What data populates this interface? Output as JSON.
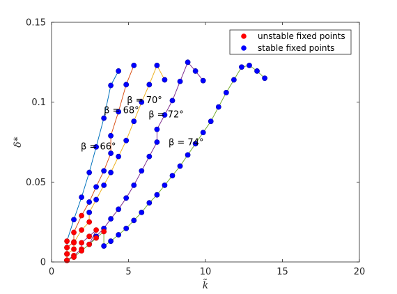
{
  "chart_data": {
    "type": "scatter",
    "title": "",
    "xlabel": "k̃",
    "ylabel": "δ*",
    "xlim": [
      0,
      20
    ],
    "ylim": [
      0,
      0.15
    ],
    "xticks": [
      0,
      5,
      10,
      15,
      20
    ],
    "xtick_labels": [
      "0",
      "5",
      "10",
      "15",
      "20"
    ],
    "yticks": [
      0,
      0.05,
      0.1,
      0.15
    ],
    "ytick_labels": [
      "0",
      "0.05",
      "0.1",
      "0.15"
    ],
    "grid": false,
    "legend_position": "top-right",
    "legend": [
      {
        "label": "unstable fixed points",
        "color": "#ff0000"
      },
      {
        "label": "stable fixed points",
        "color": "#0000ff"
      }
    ],
    "series": [
      {
        "beta_deg": 66,
        "line_color": "#0072bd",
        "annotation": {
          "text": "β = 66°",
          "x": 1.9,
          "y": 0.0705
        },
        "unstable": [
          [
            1.0,
            0.001
          ],
          [
            1.0,
            0.005
          ],
          [
            1.0,
            0.009
          ],
          [
            1.0,
            0.013
          ]
        ],
        "stable": [
          [
            1.45,
            0.0265
          ],
          [
            1.95,
            0.0405
          ],
          [
            2.45,
            0.056
          ],
          [
            2.9,
            0.072
          ],
          [
            3.4,
            0.09
          ],
          [
            3.85,
            0.1105
          ],
          [
            4.35,
            0.1195
          ]
        ]
      },
      {
        "beta_deg": 68,
        "line_color": "#d95319",
        "annotation": {
          "text": "β = 68°",
          "x": 3.4,
          "y": 0.093
        },
        "unstable": [
          [
            1.0,
            0.001
          ],
          [
            1.0,
            0.005
          ],
          [
            1.0,
            0.009
          ],
          [
            1.45,
            0.0125
          ],
          [
            1.45,
            0.0185
          ],
          [
            1.95,
            0.029
          ]
        ],
        "stable": [
          [
            2.45,
            0.0375
          ],
          [
            2.9,
            0.047
          ],
          [
            3.4,
            0.057
          ],
          [
            3.85,
            0.068
          ],
          [
            3.85,
            0.079
          ],
          [
            4.35,
            0.094
          ],
          [
            4.85,
            0.111
          ],
          [
            5.35,
            0.123
          ]
        ]
      },
      {
        "beta_deg": 70,
        "line_color": "#edb120",
        "annotation": {
          "text": "β = 70°",
          "x": 4.9,
          "y": 0.0995
        },
        "unstable": [
          [
            1.0,
            0.001
          ],
          [
            1.0,
            0.005
          ],
          [
            1.45,
            0.008
          ],
          [
            1.45,
            0.012
          ],
          [
            1.95,
            0.02
          ],
          [
            2.45,
            0.025
          ]
        ],
        "stable": [
          [
            2.45,
            0.031
          ],
          [
            2.9,
            0.039
          ],
          [
            3.4,
            0.048
          ],
          [
            3.85,
            0.056
          ],
          [
            4.35,
            0.066
          ],
          [
            4.85,
            0.076
          ],
          [
            5.35,
            0.088
          ],
          [
            5.85,
            0.1
          ],
          [
            6.35,
            0.111
          ],
          [
            6.85,
            0.123
          ],
          [
            7.35,
            0.114
          ]
        ]
      },
      {
        "beta_deg": 72,
        "line_color": "#7e2f8e",
        "annotation": {
          "text": "β = 72°",
          "x": 6.3,
          "y": 0.0905
        },
        "unstable": [
          [
            1.0,
            0.001
          ],
          [
            1.45,
            0.004
          ],
          [
            1.95,
            0.008
          ],
          [
            1.95,
            0.012
          ],
          [
            2.45,
            0.016
          ],
          [
            2.9,
            0.02
          ]
        ],
        "stable": [
          [
            2.45,
            0.011
          ],
          [
            2.9,
            0.016
          ],
          [
            3.4,
            0.021
          ],
          [
            3.85,
            0.027
          ],
          [
            4.35,
            0.033
          ],
          [
            4.85,
            0.04
          ],
          [
            5.35,
            0.048
          ],
          [
            5.85,
            0.057
          ],
          [
            6.35,
            0.066
          ],
          [
            6.85,
            0.075
          ],
          [
            6.85,
            0.083
          ],
          [
            7.35,
            0.092
          ],
          [
            7.85,
            0.101
          ],
          [
            8.35,
            0.113
          ],
          [
            8.85,
            0.125
          ],
          [
            9.35,
            0.1195
          ],
          [
            9.85,
            0.1135
          ]
        ]
      },
      {
        "beta_deg": 74,
        "line_color": "#77ac30",
        "annotation": {
          "text": "β = 74°",
          "x": 7.6,
          "y": 0.073
        },
        "unstable": [
          [
            1.0,
            0.001
          ],
          [
            1.45,
            0.003
          ],
          [
            1.95,
            0.007
          ],
          [
            2.45,
            0.011
          ],
          [
            2.9,
            0.015
          ],
          [
            3.4,
            0.019
          ]
        ],
        "stable": [
          [
            3.4,
            0.01
          ],
          [
            3.85,
            0.013
          ],
          [
            4.35,
            0.017
          ],
          [
            4.85,
            0.021
          ],
          [
            5.35,
            0.026
          ],
          [
            5.85,
            0.031
          ],
          [
            6.35,
            0.037
          ],
          [
            6.85,
            0.042
          ],
          [
            7.35,
            0.048
          ],
          [
            7.85,
            0.054
          ],
          [
            8.35,
            0.06
          ],
          [
            8.85,
            0.067
          ],
          [
            9.35,
            0.074
          ],
          [
            9.85,
            0.081
          ],
          [
            10.35,
            0.088
          ],
          [
            10.85,
            0.097
          ],
          [
            11.35,
            0.106
          ],
          [
            11.85,
            0.114
          ],
          [
            12.35,
            0.122
          ],
          [
            12.85,
            0.123
          ],
          [
            13.35,
            0.1195
          ],
          [
            13.85,
            0.115
          ]
        ]
      }
    ]
  }
}
